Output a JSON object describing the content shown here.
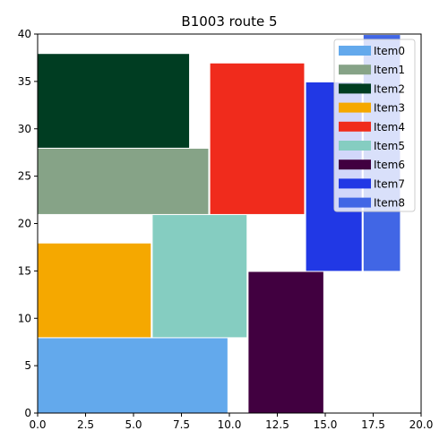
{
  "chart_data": {
    "type": "bar",
    "title": "B1003 route 5",
    "xlabel": "",
    "ylabel": "",
    "xlim": [
      0,
      20
    ],
    "ylim": [
      0,
      40
    ],
    "xticks": [
      "0.0",
      "2.5",
      "5.0",
      "7.5",
      "10.0",
      "12.5",
      "15.0",
      "17.5",
      "20.0"
    ],
    "yticks": [
      "0",
      "5",
      "10",
      "15",
      "20",
      "25",
      "30",
      "35",
      "40"
    ],
    "grid": false,
    "legend_position": "top-right",
    "items": [
      {
        "name": "Item0",
        "x0": 0,
        "x1": 9.9,
        "y0": 0,
        "y1": 7.9,
        "color": "#63a9ec"
      },
      {
        "name": "Item1",
        "x0": 0,
        "x1": 8.9,
        "y0": 21,
        "y1": 27.9,
        "color": "#86a387"
      },
      {
        "name": "Item2",
        "x0": 0,
        "x1": 7.9,
        "y0": 28,
        "y1": 37.9,
        "color": "#003d22"
      },
      {
        "name": "Item3",
        "x0": 0,
        "x1": 5.9,
        "y0": 8,
        "y1": 17.9,
        "color": "#f5a800"
      },
      {
        "name": "Item4",
        "x0": 9,
        "x1": 13.9,
        "y0": 21,
        "y1": 36.9,
        "color": "#f02b1c"
      },
      {
        "name": "Item5",
        "x0": 6,
        "x1": 10.9,
        "y0": 8,
        "y1": 20.9,
        "color": "#85cdc1"
      },
      {
        "name": "Item6",
        "x0": 11,
        "x1": 14.9,
        "y0": 0,
        "y1": 14.9,
        "color": "#410040"
      },
      {
        "name": "Item7",
        "x0": 14,
        "x1": 16.9,
        "y0": 15,
        "y1": 34.9,
        "color": "#2138e5"
      },
      {
        "name": "Item8",
        "x0": 17,
        "x1": 18.9,
        "y0": 15,
        "y1": 39.9,
        "color": "#4166e5"
      }
    ]
  }
}
